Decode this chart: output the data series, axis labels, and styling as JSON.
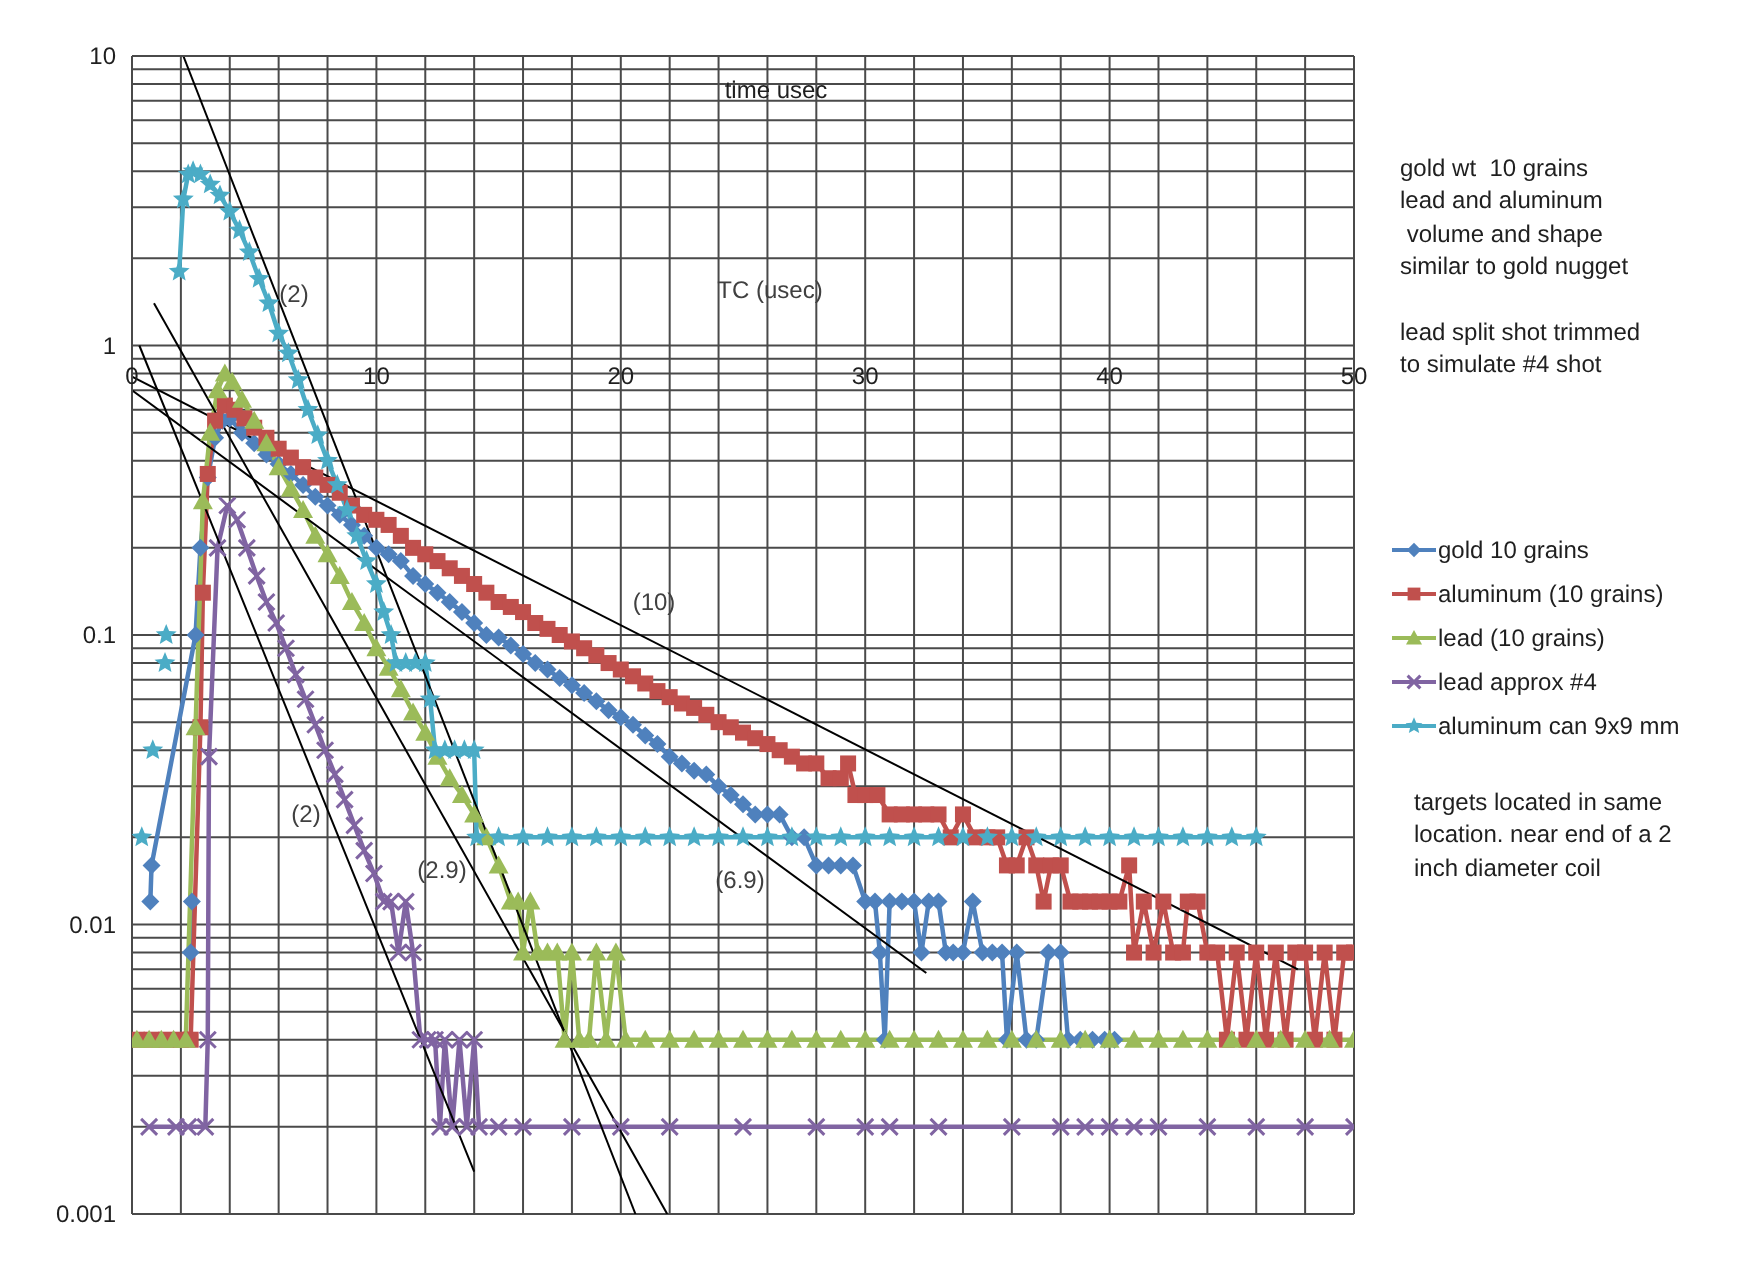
{
  "chart_data": {
    "type": "line",
    "xlabel": "time usec",
    "annotations": [
      "TC (usec)",
      "gold wt  10 grains\nlead and aluminum\n volume and shape\nsimilar to gold nugget\n\nlead split shot trimmed\nto simulate #4 shot",
      "targets located in same\nlocation. near end of a 2\ninch diameter coil",
      "(2)",
      "(10)",
      "(2)",
      "(2.9)",
      "(6.9)"
    ],
    "xlim": [
      0,
      50
    ],
    "xticks": [
      0,
      {
        "value": 2,
        "label": null
      },
      {
        "value": 4,
        "label": null
      },
      {
        "value": 6,
        "label": null
      },
      {
        "value": 8,
        "label": null
      },
      10,
      {
        "value": 12,
        "label": null
      },
      {
        "value": 14,
        "label": null
      },
      {
        "value": 16,
        "label": null
      },
      {
        "value": 18,
        "label": null
      },
      20,
      {
        "value": 22,
        "label": null
      },
      {
        "value": 24,
        "label": null
      },
      {
        "value": 26,
        "label": null
      },
      {
        "value": 28,
        "label": null
      },
      30,
      {
        "value": 32,
        "label": null
      },
      {
        "value": 34,
        "label": null
      },
      {
        "value": 36,
        "label": null
      },
      {
        "value": 38,
        "label": null
      },
      40,
      {
        "value": 42,
        "label": null
      },
      {
        "value": 44,
        "label": null
      },
      {
        "value": 46,
        "label": null
      },
      {
        "value": 48,
        "label": null
      },
      50
    ],
    "ylim": [
      0.001,
      10
    ],
    "yticks": [
      0.001,
      {
        "value": 0.002,
        "label": null
      },
      {
        "value": 0.003,
        "label": null
      },
      {
        "value": 0.004,
        "label": null
      },
      {
        "value": 0.005,
        "label": null
      },
      {
        "value": 0.006,
        "label": null
      },
      {
        "value": 0.007,
        "label": null
      },
      {
        "value": 0.008,
        "label": null
      },
      {
        "value": 0.009,
        "label": null
      },
      0.01,
      {
        "value": 0.02,
        "label": null
      },
      {
        "value": 0.03,
        "label": null
      },
      {
        "value": 0.04,
        "label": null
      },
      {
        "value": 0.05,
        "label": null
      },
      {
        "value": 0.06,
        "label": null
      },
      {
        "value": 0.07,
        "label": null
      },
      {
        "value": 0.08,
        "label": null
      },
      {
        "value": 0.09,
        "label": null
      },
      0.1,
      {
        "value": 0.2,
        "label": null
      },
      {
        "value": 0.3,
        "label": null
      },
      {
        "value": 0.4,
        "label": null
      },
      {
        "value": 0.5,
        "label": null
      },
      {
        "value": 0.6,
        "label": null
      },
      {
        "value": 0.7,
        "label": null
      },
      {
        "value": 0.8,
        "label": null
      },
      {
        "value": 0.9,
        "label": null
      },
      1,
      {
        "value": 2,
        "label": null
      },
      {
        "value": 3,
        "label": null
      },
      {
        "value": 4,
        "label": null
      },
      {
        "value": 5,
        "label": null
      },
      {
        "value": 6,
        "label": null
      },
      {
        "value": 7,
        "label": null
      },
      {
        "value": 8,
        "label": null
      },
      {
        "value": 9,
        "label": null
      },
      10
    ],
    "log": true,
    "grid": true,
    "legend": "right",
    "line_style": "solid",
    "series": [
      {
        "name": "gold 10 grains",
        "color": "#4f81bd",
        "marker": "diamond",
        "x": [
          0.75,
          0.8,
          2.6,
          2.8,
          3.1,
          3.4,
          3.7,
          4.0,
          4.5,
          5,
          5.5,
          6,
          6.5,
          7,
          7.5,
          8,
          8.5,
          9,
          9.5,
          10,
          10.5,
          11,
          11.5,
          12,
          12.5,
          13,
          13.5,
          14,
          14.5,
          15,
          15.5,
          16,
          16.5,
          17,
          17.5,
          18,
          18.5,
          19,
          19.5,
          20,
          20.5,
          21,
          21.5,
          22,
          22.5,
          23,
          23.5,
          24,
          24.5,
          25,
          25.5,
          26,
          26.5,
          27,
          27.5,
          28,
          28.5,
          29,
          29.5,
          30,
          30.4,
          30.6,
          30.8,
          31,
          31.5,
          32,
          32.3,
          32.6,
          33,
          33.3,
          33.6,
          34,
          34.4,
          34.8,
          35.2,
          35.6,
          35.8,
          36.2,
          36.6,
          37,
          37.5,
          38,
          38.3,
          38.8,
          39.3,
          39.8,
          40.2,
          null,
          2.4,
          2.45
        ],
        "values": [
          0.012,
          0.016,
          0.1,
          0.2,
          0.35,
          0.48,
          0.55,
          0.56,
          0.5,
          0.46,
          0.42,
          0.39,
          0.36,
          0.33,
          0.3,
          0.28,
          0.26,
          0.24,
          0.22,
          0.2,
          0.19,
          0.18,
          0.16,
          0.15,
          0.14,
          0.13,
          0.12,
          0.11,
          0.1,
          0.098,
          0.092,
          0.086,
          0.08,
          0.076,
          0.071,
          0.067,
          0.063,
          0.059,
          0.055,
          0.052,
          0.049,
          0.045,
          0.042,
          0.038,
          0.036,
          0.034,
          0.033,
          0.03,
          0.028,
          0.026,
          0.024,
          0.024,
          0.024,
          0.02,
          0.02,
          0.016,
          0.016,
          0.016,
          0.016,
          0.012,
          0.012,
          0.008,
          0.004,
          0.012,
          0.012,
          0.012,
          0.008,
          0.012,
          0.012,
          0.008,
          0.008,
          0.008,
          0.012,
          0.008,
          0.008,
          0.008,
          0.004,
          0.008,
          0.004,
          0.004,
          0.008,
          0.008,
          0.004,
          0.004,
          0.004,
          0.004,
          0.004,
          null,
          0.008,
          0.012
        ]
      },
      {
        "name": "aluminum (10 grains)",
        "color": "#c0504d",
        "marker": "square",
        "x": [
          0.2,
          0.8,
          1.4,
          2.0,
          2.4,
          2.8,
          2.9,
          3.1,
          3.4,
          3.8,
          4.2,
          4.6,
          5,
          5.5,
          6,
          6.5,
          7,
          7.5,
          8,
          8.5,
          9,
          9.5,
          10,
          10.5,
          11,
          11.5,
          12,
          12.5,
          13,
          13.5,
          14,
          14.5,
          15,
          15.5,
          16,
          16.5,
          17,
          17.5,
          18,
          18.5,
          19,
          19.5,
          20,
          20.5,
          21,
          21.5,
          22,
          22.5,
          23,
          23.5,
          24,
          24.5,
          25,
          25.5,
          26,
          26.5,
          27,
          27.5,
          28,
          28.5,
          29,
          29.3,
          29.6,
          30,
          30.5,
          31,
          31.5,
          32,
          32.5,
          33,
          33.5,
          34,
          34.5,
          35,
          35.4,
          35.8,
          36.2,
          36.6,
          37,
          37.3,
          37.6,
          38,
          38.4,
          38.8,
          39.2,
          39.6,
          40,
          40.4,
          40.8,
          41,
          41.4,
          41.8,
          42.2,
          42.6,
          43,
          43.2,
          43.6,
          44,
          44.4,
          44.8,
          45.2,
          45.6,
          46,
          46.4,
          46.8,
          47.2,
          47.6,
          48,
          48.4,
          48.8,
          49.2,
          49.6,
          50
        ],
        "values": [
          0.004,
          0.004,
          0.004,
          0.004,
          0.004,
          0.048,
          0.14,
          0.36,
          0.55,
          0.62,
          0.6,
          0.56,
          0.52,
          0.48,
          0.44,
          0.41,
          0.38,
          0.35,
          0.33,
          0.31,
          0.28,
          0.26,
          0.25,
          0.24,
          0.22,
          0.2,
          0.19,
          0.18,
          0.17,
          0.16,
          0.15,
          0.14,
          0.13,
          0.125,
          0.12,
          0.11,
          0.105,
          0.1,
          0.095,
          0.09,
          0.085,
          0.08,
          0.076,
          0.072,
          0.068,
          0.064,
          0.061,
          0.058,
          0.056,
          0.053,
          0.05,
          0.048,
          0.046,
          0.044,
          0.042,
          0.04,
          0.038,
          0.036,
          0.036,
          0.032,
          0.032,
          0.036,
          0.028,
          0.028,
          0.028,
          0.024,
          0.024,
          0.024,
          0.024,
          0.024,
          0.02,
          0.024,
          0.02,
          0.02,
          0.02,
          0.016,
          0.016,
          0.02,
          0.016,
          0.012,
          0.016,
          0.016,
          0.012,
          0.012,
          0.012,
          0.012,
          0.012,
          0.012,
          0.016,
          0.008,
          0.012,
          0.008,
          0.012,
          0.008,
          0.008,
          0.012,
          0.012,
          0.008,
          0.008,
          0.004,
          0.008,
          0.004,
          0.008,
          0.004,
          0.008,
          0.004,
          0.008,
          0.008,
          0.004,
          0.008,
          0.004,
          0.008,
          0.008
        ]
      },
      {
        "name": "lead (10 grains)",
        "color": "#9bbb59",
        "marker": "triangle",
        "x": [
          0.2,
          0.7,
          1.2,
          1.7,
          2.2,
          2.6,
          2.9,
          3.2,
          3.5,
          3.8,
          4.1,
          4.5,
          5,
          5.5,
          6,
          6.5,
          7,
          7.5,
          8,
          8.5,
          9,
          9.5,
          10,
          10.5,
          11,
          11.5,
          12,
          12.5,
          13,
          13.5,
          14,
          14.5,
          15,
          15.5,
          15.8,
          16,
          16.3,
          16.6,
          17,
          17.4,
          17.7,
          18,
          18.3,
          18.7,
          19,
          19.4,
          19.8,
          20.2,
          21,
          22,
          23,
          24,
          25,
          26,
          27,
          28,
          29,
          30,
          31,
          32,
          33,
          34,
          35,
          36,
          37,
          38,
          39,
          40,
          41,
          42,
          43,
          44,
          45,
          46,
          47,
          48,
          49,
          50
        ],
        "values": [
          0.004,
          0.004,
          0.004,
          0.004,
          0.004,
          0.048,
          0.29,
          0.5,
          0.7,
          0.8,
          0.75,
          0.65,
          0.55,
          0.46,
          0.38,
          0.32,
          0.27,
          0.22,
          0.19,
          0.16,
          0.13,
          0.11,
          0.09,
          0.077,
          0.065,
          0.054,
          0.046,
          0.038,
          0.032,
          0.028,
          0.024,
          0.02,
          0.016,
          0.012,
          0.012,
          0.008,
          0.012,
          0.008,
          0.008,
          0.008,
          0.004,
          0.008,
          0.004,
          0.004,
          0.008,
          0.004,
          0.008,
          0.004,
          0.004,
          0.004,
          0.004,
          0.004,
          0.004,
          0.004,
          0.004,
          0.004,
          0.004,
          0.004,
          0.004,
          0.004,
          0.004,
          0.004,
          0.004,
          0.004,
          0.004,
          0.004,
          0.004,
          0.004,
          0.004,
          0.004,
          0.004,
          0.004,
          0.004,
          0.004,
          0.004,
          0.004,
          0.004,
          0.004
        ]
      },
      {
        "name": "lead approx #4",
        "color": "#8064a2",
        "marker": "cross",
        "x": [
          0.7,
          1.8,
          2.3,
          3.0,
          3.1,
          3.15,
          3.5,
          3.9,
          4.3,
          4.7,
          5.1,
          5.5,
          5.9,
          6.3,
          6.7,
          7.1,
          7.5,
          7.9,
          8.3,
          8.7,
          9.1,
          9.5,
          9.9,
          10.3,
          10.6,
          10.9,
          11.2,
          11.5,
          11.8,
          12.1,
          12.4,
          12.6,
          12.8,
          13.1,
          13.4,
          13.7,
          14,
          14.2,
          15,
          16,
          18,
          20,
          22,
          25,
          28,
          30,
          31,
          33,
          36,
          38,
          39,
          40,
          41,
          42,
          44,
          46,
          48,
          50
        ],
        "values": [
          0.002,
          0.002,
          0.002,
          0.002,
          0.004,
          0.038,
          0.2,
          0.28,
          0.25,
          0.2,
          0.16,
          0.13,
          0.11,
          0.09,
          0.073,
          0.06,
          0.049,
          0.04,
          0.033,
          0.027,
          0.022,
          0.018,
          0.015,
          0.012,
          0.012,
          0.008,
          0.012,
          0.008,
          0.004,
          0.004,
          0.004,
          0.002,
          0.004,
          0.002,
          0.004,
          0.002,
          0.004,
          0.002,
          0.002,
          0.002,
          0.002,
          0.002,
          0.002,
          0.002,
          0.002,
          0.002,
          0.002,
          0.002,
          0.002,
          0.002,
          0.002,
          0.002,
          0.002,
          0.002,
          0.002,
          0.002,
          0.002,
          0.002
        ]
      },
      {
        "name": "aluminum can 9x9 mm",
        "color": "#4bacc6",
        "marker": "star",
        "x": [
          0.4,
          null,
          0.85,
          null,
          1.35,
          null,
          1.4,
          null,
          1.93,
          2.1,
          2.3,
          2.5,
          2.8,
          3.2,
          3.6,
          4.0,
          4.4,
          4.8,
          5.2,
          5.6,
          6.0,
          6.4,
          6.8,
          7.2,
          7.6,
          8.0,
          8.4,
          8.8,
          9.2,
          9.6,
          10,
          10.3,
          10.6,
          10.8,
          11.2,
          11.6,
          12,
          12.2,
          12.4,
          12.8,
          13.2,
          13.6,
          14,
          14.1,
          15,
          16,
          17,
          18,
          19,
          20,
          21,
          22,
          23,
          24,
          25,
          26,
          27,
          28,
          29,
          30,
          31,
          32,
          33,
          34,
          35,
          36,
          37,
          38,
          39,
          40,
          41,
          42,
          43,
          44,
          45,
          46
        ],
        "values": [
          0.02,
          null,
          0.04,
          null,
          0.08,
          null,
          0.1,
          null,
          1.8,
          3.2,
          3.9,
          4.0,
          3.9,
          3.6,
          3.3,
          2.9,
          2.5,
          2.1,
          1.7,
          1.4,
          1.1,
          0.94,
          0.76,
          0.6,
          0.49,
          0.4,
          0.33,
          0.27,
          0.22,
          0.18,
          0.15,
          0.12,
          0.1,
          0.08,
          0.08,
          0.08,
          0.08,
          0.06,
          0.04,
          0.04,
          0.04,
          0.04,
          0.04,
          0.02,
          0.02,
          0.02,
          0.02,
          0.02,
          0.02,
          0.02,
          0.02,
          0.02,
          0.02,
          0.02,
          0.02,
          0.02,
          0.02,
          0.02,
          0.02,
          0.02,
          0.02,
          0.02,
          0.02,
          0.02,
          0.02,
          0.02,
          0.02,
          0.02,
          0.02,
          0.02,
          0.02,
          0.02,
          0.02,
          0.02,
          0.02,
          0.02
        ]
      },
      {
        "color": "#000000",
        "marker": "none",
        "x": [
          2.1,
          20.6
        ],
        "values": [
          10,
          0.001
        ]
      },
      {
        "color": "#000000",
        "marker": "none",
        "x": [
          0.3,
          14
        ],
        "values": [
          1.0,
          0.0014
        ]
      },
      {
        "color": "#000000",
        "marker": "none",
        "x": [
          0.9,
          21.9
        ],
        "values": [
          1.4,
          0.001
        ]
      },
      {
        "color": "#000000",
        "marker": "none",
        "x": [
          0,
          32.5
        ],
        "values": [
          0.7,
          0.0068
        ]
      },
      {
        "color": "#000000",
        "marker": "none",
        "x": [
          0,
          47.7
        ],
        "values": [
          0.78,
          0.007
        ]
      }
    ]
  }
}
